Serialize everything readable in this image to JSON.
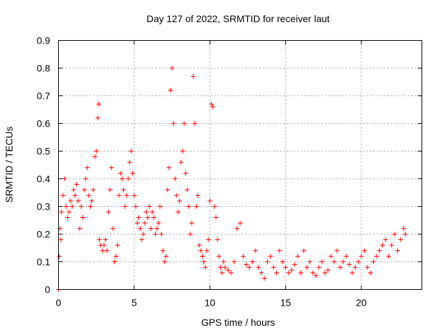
{
  "chart_data": {
    "type": "scatter",
    "title": "Day 127 of 2022, SRMTID for receiver laut",
    "xlabel": "GPS time / hours",
    "ylabel": "SRMTID / TECUs",
    "xlim": [
      0,
      24
    ],
    "ylim": [
      0,
      0.9
    ],
    "xticks": [
      0,
      5,
      10,
      15,
      20
    ],
    "xtick_labels": [
      "0",
      "5",
      "10",
      "15",
      "20"
    ],
    "yticks": [
      0,
      0.1,
      0.2,
      0.3,
      0.4,
      0.5,
      0.6,
      0.7,
      0.8,
      0.9
    ],
    "ytick_labels": [
      "0",
      "0.1",
      "0.2",
      "0.3",
      "0.4",
      "0.5",
      "0.6",
      "0.7",
      "0.8",
      "0.9"
    ],
    "grid": true,
    "marker": "plus",
    "color": "#ff0000",
    "series": [
      {
        "name": "SRMTID",
        "x": [
          0.0,
          0.05,
          0.1,
          0.15,
          0.2,
          0.3,
          0.4,
          0.5,
          0.6,
          0.7,
          0.8,
          0.9,
          1.0,
          1.1,
          1.2,
          1.3,
          1.4,
          1.5,
          1.6,
          1.7,
          1.8,
          1.9,
          2.0,
          2.1,
          2.2,
          2.3,
          2.4,
          2.5,
          2.6,
          2.65,
          2.7,
          2.8,
          2.9,
          3.0,
          3.1,
          3.2,
          3.3,
          3.4,
          3.5,
          3.6,
          3.7,
          3.8,
          3.9,
          4.0,
          4.1,
          4.2,
          4.3,
          4.4,
          4.5,
          4.6,
          4.7,
          4.8,
          4.9,
          5.0,
          5.1,
          5.2,
          5.3,
          5.4,
          5.5,
          5.6,
          5.7,
          5.8,
          5.9,
          6.0,
          6.1,
          6.2,
          6.3,
          6.4,
          6.5,
          6.6,
          6.7,
          6.8,
          6.9,
          7.0,
          7.1,
          7.2,
          7.3,
          7.4,
          7.5,
          7.6,
          7.7,
          7.8,
          7.9,
          8.0,
          8.1,
          8.2,
          8.3,
          8.4,
          8.5,
          8.6,
          8.7,
          8.8,
          8.9,
          9.0,
          9.1,
          9.2,
          9.3,
          9.4,
          9.5,
          9.6,
          9.7,
          9.8,
          9.9,
          10.0,
          10.1,
          10.2,
          10.3,
          10.4,
          10.5,
          10.6,
          10.7,
          10.8,
          10.9,
          11.0,
          11.2,
          11.4,
          11.6,
          11.8,
          12.0,
          12.2,
          12.4,
          12.6,
          12.8,
          13.0,
          13.2,
          13.4,
          13.6,
          13.8,
          14.0,
          14.2,
          14.4,
          14.6,
          14.8,
          15.0,
          15.2,
          15.4,
          15.6,
          15.8,
          16.0,
          16.2,
          16.4,
          16.6,
          16.8,
          17.0,
          17.2,
          17.4,
          17.6,
          17.8,
          18.0,
          18.2,
          18.4,
          18.6,
          18.8,
          19.0,
          19.2,
          19.4,
          19.6,
          19.8,
          20.0,
          20.2,
          20.4,
          20.6,
          20.8,
          21.0,
          21.2,
          21.4,
          21.6,
          21.8,
          22.0,
          22.2,
          22.4,
          22.6,
          22.8,
          22.9
        ],
        "y": [
          0.0,
          0.12,
          0.22,
          0.18,
          0.28,
          0.34,
          0.4,
          0.3,
          0.26,
          0.28,
          0.32,
          0.3,
          0.36,
          0.34,
          0.38,
          0.32,
          0.22,
          0.3,
          0.26,
          0.36,
          0.4,
          0.44,
          0.34,
          0.3,
          0.32,
          0.36,
          0.48,
          0.5,
          0.62,
          0.67,
          0.18,
          0.16,
          0.14,
          0.16,
          0.18,
          0.14,
          0.28,
          0.36,
          0.44,
          0.22,
          0.1,
          0.12,
          0.16,
          0.34,
          0.42,
          0.4,
          0.36,
          0.3,
          0.34,
          0.4,
          0.46,
          0.5,
          0.42,
          0.34,
          0.3,
          0.24,
          0.26,
          0.22,
          0.18,
          0.2,
          0.24,
          0.28,
          0.26,
          0.3,
          0.22,
          0.28,
          0.26,
          0.2,
          0.22,
          0.24,
          0.3,
          0.2,
          0.14,
          0.1,
          0.12,
          0.36,
          0.44,
          0.72,
          0.8,
          0.6,
          0.4,
          0.34,
          0.28,
          0.32,
          0.46,
          0.5,
          0.6,
          0.42,
          0.36,
          0.3,
          0.2,
          0.24,
          0.77,
          0.6,
          0.3,
          0.34,
          0.16,
          0.14,
          0.12,
          0.1,
          0.08,
          0.14,
          0.18,
          0.32,
          0.67,
          0.66,
          0.3,
          0.26,
          0.18,
          0.12,
          0.08,
          0.06,
          0.1,
          0.08,
          0.07,
          0.06,
          0.1,
          0.22,
          0.24,
          0.12,
          0.09,
          0.08,
          0.1,
          0.14,
          0.08,
          0.06,
          0.04,
          0.1,
          0.12,
          0.08,
          0.06,
          0.14,
          0.1,
          0.08,
          0.06,
          0.07,
          0.09,
          0.12,
          0.06,
          0.14,
          0.08,
          0.1,
          0.06,
          0.05,
          0.08,
          0.1,
          0.06,
          0.07,
          0.12,
          0.1,
          0.14,
          0.08,
          0.1,
          0.12,
          0.09,
          0.06,
          0.08,
          0.1,
          0.12,
          0.14,
          0.08,
          0.06,
          0.1,
          0.12,
          0.14,
          0.16,
          0.18,
          0.12,
          0.16,
          0.2,
          0.14,
          0.18,
          0.22,
          0.2
        ]
      }
    ]
  }
}
